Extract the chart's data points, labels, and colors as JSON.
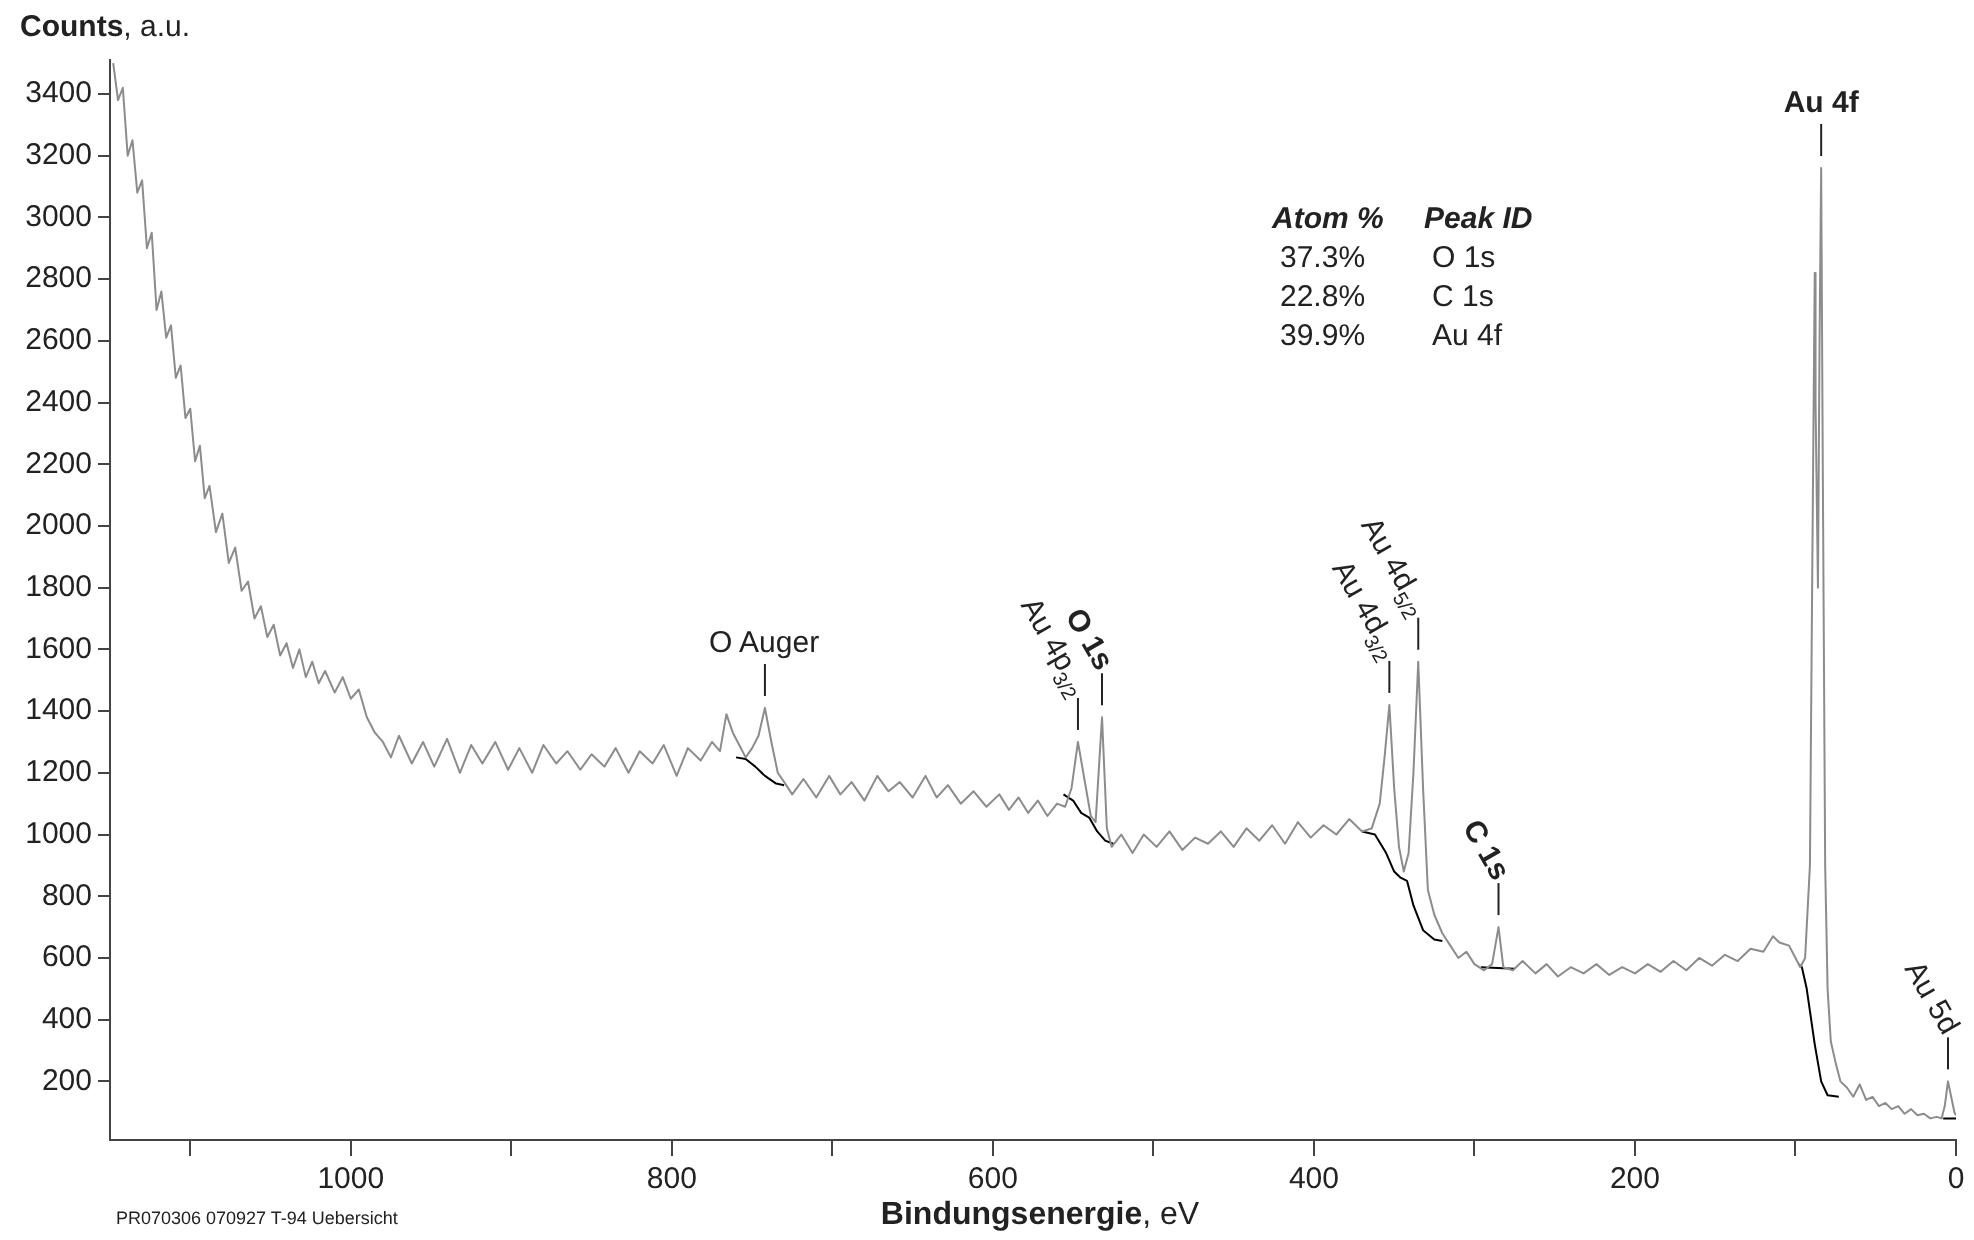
{
  "chart_data": {
    "type": "line",
    "xlabel": "Bindungsenergie, eV",
    "ylabel": "Counts, a.u.",
    "xlim": [
      1150,
      0
    ],
    "ylim": [
      10,
      3510
    ],
    "xticks": [
      {
        "value": 1100,
        "label": null
      },
      1000,
      {
        "value": 900,
        "label": null
      },
      800,
      {
        "value": 700,
        "label": null
      },
      600,
      {
        "value": 500,
        "label": null
      },
      400,
      {
        "value": 300,
        "label": null
      },
      200,
      {
        "value": 100,
        "label": null
      },
      0
    ],
    "yticks": [
      200,
      400,
      600,
      800,
      1000,
      1200,
      1400,
      1600,
      1800,
      2000,
      2200,
      2400,
      2600,
      2800,
      3000,
      3200,
      3400
    ],
    "series": [
      {
        "color": "#8c8c8c",
        "x": [
          1148,
          1145,
          1142,
          1139,
          1136,
          1133,
          1130,
          1127,
          1124,
          1121,
          1118,
          1115,
          1112,
          1109,
          1106,
          1103,
          1100,
          1097,
          1094,
          1091,
          1088,
          1084,
          1080,
          1076,
          1072,
          1068,
          1064,
          1060,
          1056,
          1052,
          1048,
          1044,
          1040,
          1036,
          1032,
          1028,
          1024,
          1020,
          1016,
          1010,
          1005,
          1000,
          995,
          990,
          985,
          980,
          975,
          970,
          962,
          955,
          948,
          940,
          932,
          925,
          918,
          910,
          902,
          895,
          887,
          880,
          872,
          865,
          857,
          850,
          842,
          835,
          827,
          820,
          812,
          805,
          797,
          790,
          782,
          775,
          770,
          766,
          762,
          758,
          754,
          750,
          746,
          742,
          738,
          734,
          730,
          725,
          718,
          710,
          702,
          695,
          688,
          680,
          672,
          665,
          658,
          650,
          642,
          635,
          628,
          620,
          612,
          604,
          596,
          590,
          584,
          578,
          572,
          566,
          560,
          555,
          551,
          547,
          543,
          539,
          536,
          532,
          529,
          526,
          520,
          513,
          506,
          498,
          490,
          482,
          474,
          466,
          458,
          450,
          442,
          434,
          426,
          418,
          410,
          402,
          394,
          386,
          378,
          370,
          364,
          359,
          356,
          353,
          350,
          347,
          344,
          341,
          338,
          335,
          332,
          329,
          325,
          320,
          315,
          310,
          305,
          300,
          294,
          289,
          285,
          282,
          276,
          270,
          262,
          255,
          248,
          240,
          232,
          224,
          216,
          208,
          200,
          192,
          184,
          176,
          168,
          160,
          152,
          144,
          136,
          128,
          120,
          114,
          110,
          104,
          100,
          97,
          94,
          91,
          89,
          88,
          87.5,
          86,
          85,
          84,
          83,
          81.5,
          80,
          78,
          75,
          72,
          68,
          64,
          60,
          56,
          52,
          48,
          44,
          40,
          36,
          32,
          28,
          24,
          20,
          16,
          12,
          9,
          7,
          5,
          3,
          1,
          0
        ],
        "values": [
          3500,
          3380,
          3420,
          3200,
          3250,
          3080,
          3120,
          2900,
          2950,
          2700,
          2760,
          2610,
          2650,
          2480,
          2520,
          2350,
          2380,
          2210,
          2260,
          2090,
          2130,
          1980,
          2040,
          1880,
          1930,
          1790,
          1820,
          1700,
          1740,
          1640,
          1680,
          1580,
          1620,
          1540,
          1600,
          1510,
          1560,
          1490,
          1530,
          1460,
          1510,
          1440,
          1470,
          1380,
          1330,
          1300,
          1250,
          1320,
          1230,
          1300,
          1220,
          1310,
          1200,
          1290,
          1230,
          1300,
          1210,
          1280,
          1200,
          1290,
          1230,
          1270,
          1210,
          1260,
          1220,
          1280,
          1200,
          1270,
          1230,
          1290,
          1190,
          1280,
          1240,
          1300,
          1270,
          1390,
          1330,
          1290,
          1250,
          1280,
          1320,
          1410,
          1300,
          1200,
          1170,
          1130,
          1180,
          1120,
          1190,
          1130,
          1170,
          1110,
          1190,
          1140,
          1170,
          1120,
          1190,
          1120,
          1160,
          1100,
          1140,
          1090,
          1130,
          1080,
          1120,
          1070,
          1110,
          1060,
          1100,
          1090,
          1150,
          1300,
          1180,
          1060,
          1040,
          1380,
          1020,
          960,
          1000,
          940,
          1000,
          960,
          1010,
          950,
          990,
          970,
          1010,
          960,
          1020,
          980,
          1030,
          970,
          1040,
          990,
          1030,
          1000,
          1050,
          1010,
          1020,
          1100,
          1250,
          1420,
          1150,
          960,
          880,
          940,
          1200,
          1560,
          1150,
          820,
          740,
          680,
          640,
          600,
          620,
          580,
          560,
          580,
          700,
          570,
          560,
          590,
          550,
          580,
          540,
          570,
          550,
          580,
          545,
          570,
          550,
          580,
          555,
          590,
          560,
          600,
          575,
          610,
          590,
          630,
          620,
          670,
          650,
          640,
          600,
          570,
          600,
          900,
          2200,
          2820,
          2400,
          1800,
          2600,
          3160,
          2200,
          900,
          500,
          330,
          260,
          200,
          180,
          150,
          190,
          140,
          150,
          120,
          130,
          110,
          120,
          95,
          110,
          90,
          95,
          80,
          85,
          80,
          120,
          200,
          150,
          100,
          90
        ]
      },
      {
        "color": "#000000",
        "x": [
          760,
          754,
          748,
          742,
          735,
          730,
          728,
          556,
          550,
          545,
          540,
          535,
          530,
          525,
          523,
          370,
          362,
          355,
          350,
          346,
          342,
          338,
          332,
          325,
          320,
          318,
          296,
          275,
          273,
          98,
          96,
          93,
          88,
          84,
          80,
          73,
          70,
          8,
          0
        ],
        "values": [
          1250,
          1245,
          1220,
          1190,
          1165,
          1160,
          null,
          1130,
          1110,
          1070,
          1055,
          1010,
          980,
          970,
          null,
          1010,
          1000,
          940,
          880,
          860,
          850,
          770,
          690,
          660,
          655,
          null,
          570,
          565,
          null,
          580,
          570,
          500,
          320,
          200,
          155,
          150,
          null,
          80,
          80
        ]
      }
    ],
    "annotations": [
      {
        "text": "O Auger",
        "x": 742,
        "y": 1410
      },
      {
        "text": "Au 4p$_{3/2}$",
        "x": 547,
        "y": 1300
      },
      {
        "text": "O 1s",
        "x": 532,
        "y": 1380
      },
      {
        "text": "Au 4d$_{3/2}$",
        "x": 353,
        "y": 1420
      },
      {
        "text": "Au 4d$_{5/2}$",
        "x": 335,
        "y": 1560
      },
      {
        "text": "C 1s",
        "x": 285,
        "y": 700
      },
      {
        "text": "Au 4f",
        "x": 84,
        "y": 3160
      },
      {
        "text": "Au 5d",
        "x": 5,
        "y": 200
      },
      "Atom %",
      "Peak ID",
      "37.3%",
      "O 1s",
      "22.8%",
      "C 1s",
      "39.9%",
      "Au 4f",
      "PR070306 070927 T-94 Uebersicht"
    ]
  }
}
